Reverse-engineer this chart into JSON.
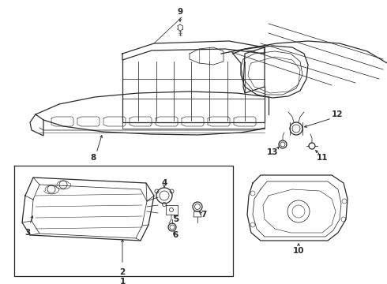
{
  "bg_color": "#ffffff",
  "line_color": "#2a2a2a",
  "lw_main": 0.9,
  "lw_thin": 0.55,
  "lw_thick": 1.1
}
